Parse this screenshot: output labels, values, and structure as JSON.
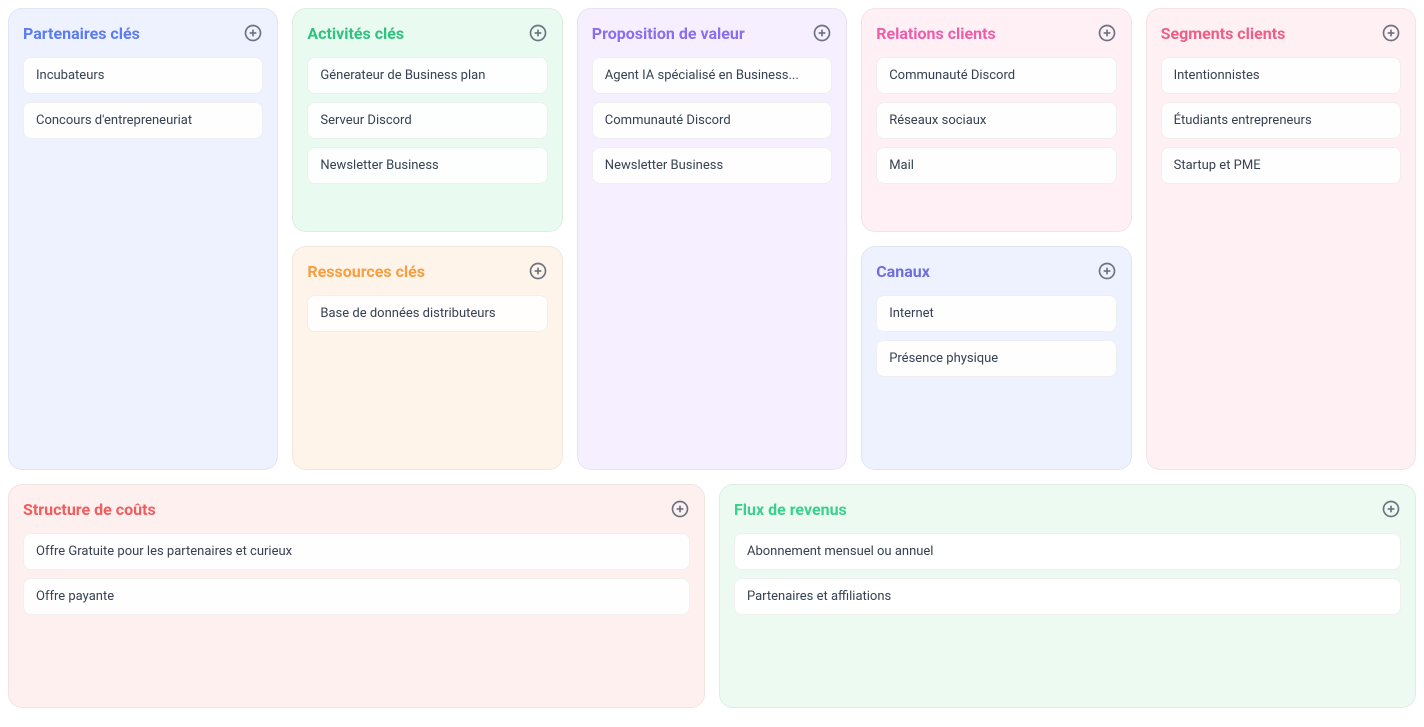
{
  "palette": {
    "partners": {
      "bg": "#eef2ff",
      "title": "#5b7cf0"
    },
    "activities": {
      "bg": "#e9faf1",
      "title": "#2ec27e"
    },
    "resources": {
      "bg": "#fff4ea",
      "title": "#f59e42"
    },
    "value": {
      "bg": "#f5efff",
      "title": "#8b6ef0"
    },
    "relations": {
      "bg": "#fff0f6",
      "title": "#ef5da8"
    },
    "channels": {
      "bg": "#eef2ff",
      "title": "#6f6fdc"
    },
    "segments": {
      "bg": "#fff0f4",
      "title": "#f05d85"
    },
    "costs": {
      "bg": "#fff0f0",
      "title": "#ef5d5d"
    },
    "revenue": {
      "bg": "#edfaf2",
      "title": "#3bcf8e"
    }
  },
  "blocks": {
    "partners": {
      "title": "Partenaires clés",
      "items": [
        "Incubateurs",
        "Concours d'entrepreneuriat"
      ]
    },
    "activities": {
      "title": "Activités clés",
      "items": [
        "Génerateur de Business plan",
        "Serveur Discord",
        "Newsletter Business"
      ]
    },
    "resources": {
      "title": "Ressources clés",
      "items": [
        "Base de données distributeurs"
      ]
    },
    "value": {
      "title": "Proposition de valeur",
      "items": [
        "Agent IA spécialisé en Business...",
        "Communauté Discord",
        "Newsletter Business"
      ]
    },
    "relations": {
      "title": "Relations clients",
      "items": [
        "Communauté Discord",
        "Réseaux sociaux",
        "Mail"
      ]
    },
    "channels": {
      "title": "Canaux",
      "items": [
        "Internet",
        "Présence physique"
      ]
    },
    "segments": {
      "title": "Segments clients",
      "items": [
        "Intentionnistes",
        "Étudiants entrepreneurs",
        "Startup et PME"
      ]
    },
    "costs": {
      "title": "Structure de coûts",
      "items": [
        "Offre Gratuite pour les partenaires et curieux",
        "Offre payante"
      ]
    },
    "revenue": {
      "title": "Flux de revenus",
      "items": [
        "Abonnement mensuel ou annuel",
        "Partenaires et affiliations"
      ]
    }
  }
}
